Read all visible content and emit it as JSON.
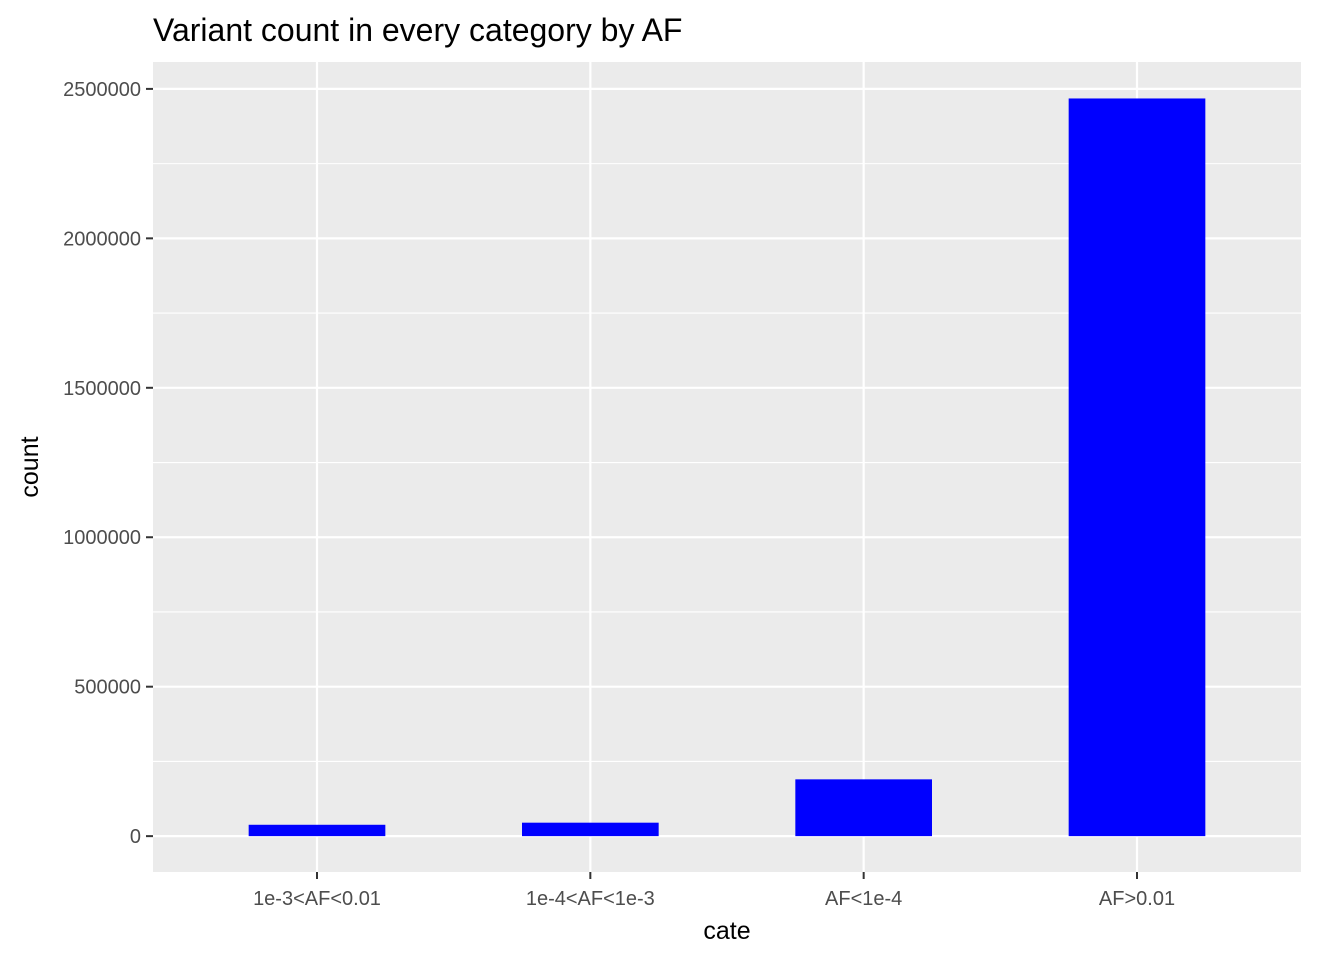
{
  "chart_data": {
    "type": "bar",
    "title": "Variant count in every category by AF",
    "xlabel": "cate",
    "ylabel": "count",
    "categories": [
      "1e-3<AF<0.01",
      "1e-4<AF<1e-3",
      "AF<1e-4",
      "AF>0.01"
    ],
    "values": [
      38000,
      45000,
      190000,
      2468000
    ],
    "ylim": [
      -120000,
      2590000
    ],
    "yticks": [
      0,
      500000,
      1000000,
      1500000,
      2000000,
      2500000
    ],
    "ytick_labels": [
      "0",
      "500000",
      "1000000",
      "1500000",
      "2000000",
      "2500000"
    ],
    "grid": true,
    "legend": "none",
    "colors": {
      "bar": "#0000ff",
      "panel_background": "#ebebeb",
      "grid": "#ffffff"
    }
  }
}
